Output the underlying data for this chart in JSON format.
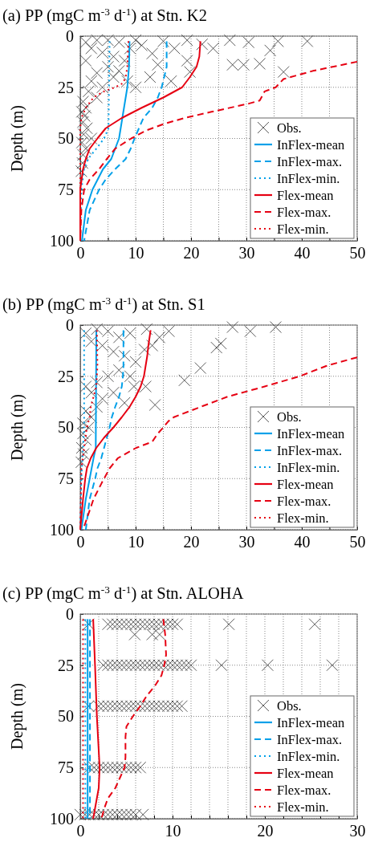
{
  "chart_data": [
    {
      "type": "line",
      "title": "(a) PP (mgC m$^{-3}$ d$^{-1}$) at Stn. K2",
      "ylabel": "Depth (m)",
      "xlim": [
        0,
        50
      ],
      "ylim": [
        100,
        0
      ],
      "xticks": [
        0,
        {
          "value": 5,
          "label": null
        },
        10,
        {
          "value": 15,
          "label": null
        },
        20,
        {
          "value": 25,
          "label": null
        },
        30,
        {
          "value": 35,
          "label": null
        },
        40,
        {
          "value": 45,
          "label": null
        },
        50
      ],
      "yticks": [
        0,
        25,
        50,
        75,
        100
      ],
      "grid": true,
      "legend": "bottom right",
      "series": [
        {
          "name": "Obs.",
          "type": "scatter",
          "marker": "cross",
          "color": "#333333",
          "x": [
            27.5,
            29.5,
            32.4,
            36.7,
            27,
            30.4,
            35.7,
            41,
            34.3,
            19.3,
            19.8,
            16.4,
            12.6,
            13,
            11.1,
            15,
            19.3,
            22,
            24,
            10,
            7,
            5,
            3,
            1,
            2,
            4,
            6,
            8,
            9,
            5,
            3,
            1,
            2,
            4,
            6,
            7,
            1.5,
            3,
            0.5,
            1,
            0.3,
            0.8,
            0.5,
            1.2,
            0.6,
            0.3,
            1,
            0.5,
            2,
            0.4,
            0.2,
            10,
            14,
            17,
            8.5
          ],
          "values": [
            14,
            14,
            13.5,
            17.5,
            2,
            3,
            2.5,
            2.5,
            7,
            12,
            17.5,
            22,
            20,
            8.5,
            4.5,
            2.5,
            2,
            4,
            6,
            2,
            3,
            2,
            2,
            3,
            6,
            8,
            10,
            12,
            6,
            15,
            18,
            12,
            22,
            25,
            20,
            17,
            27,
            30,
            32,
            35,
            37,
            39,
            42,
            45,
            48,
            52,
            55,
            58,
            50,
            62,
            66,
            25,
            14,
            6,
            22
          ]
        },
        {
          "name": "InFlex-mean",
          "color": "#00a0e9",
          "line_style": "solid",
          "x": [
            8.9,
            8.8,
            8.5,
            7.6,
            7.0,
            5.6,
            4.1,
            2.2,
            1.0,
            0.3
          ],
          "values": [
            2.5,
            15,
            25,
            40,
            50,
            60,
            65,
            75,
            85,
            100
          ]
        },
        {
          "name": "InFlex-max.",
          "color": "#00a0e9",
          "line_style": "dashed",
          "x": [
            15.6,
            15.6,
            14.7,
            14,
            13,
            11.4,
            10.6,
            9.8,
            9.1,
            8.2,
            6.3,
            4.6,
            3.4,
            1.7,
            0.7
          ],
          "values": [
            2.5,
            15,
            25,
            30,
            35,
            40,
            45,
            50,
            55,
            60,
            65,
            70,
            75,
            85,
            100
          ]
        },
        {
          "name": "InFlex-min.",
          "color": "#00a0e9",
          "line_style": "dotted",
          "x": [
            5.3,
            5.1,
            4.3,
            2.9,
            1.4,
            0.7,
            0.2,
            0
          ],
          "values": [
            2.5,
            45,
            50,
            55,
            60,
            65,
            75,
            100
          ]
        },
        {
          "name": "Flex-mean",
          "color": "#e60012",
          "line_style": "solid",
          "x": [
            21.7,
            21.5,
            21,
            19.8,
            18.4,
            15,
            11.1,
            7.5,
            4.6,
            3.1,
            1.7,
            1.0,
            0.5,
            0,
            0
          ],
          "values": [
            2.5,
            10,
            15,
            20,
            25,
            30,
            35,
            40,
            45,
            50,
            55,
            60,
            65,
            75,
            100
          ]
        },
        {
          "name": "Flex-max.",
          "color": "#e60012",
          "line_style": "dashed",
          "x": [
            50,
            42,
            36.7,
            35.3,
            33.3,
            32.4,
            30.4,
            23.7,
            18.8,
            15,
            12,
            9.2,
            6.3,
            4.8,
            3.4,
            1.7,
            0.7,
            0.2,
            0
          ],
          "values": [
            12.5,
            17,
            21,
            25,
            27,
            31.5,
            33,
            37,
            40,
            43,
            46,
            50,
            55,
            60,
            65,
            70,
            75,
            85,
            100
          ]
        },
        {
          "name": "Flex-min.",
          "color": "#e60012",
          "line_style": "dotted",
          "x": [
            8.7,
            8.5,
            8.2,
            7.7,
            6.3,
            4.3,
            2.4,
            1.0,
            0.2,
            0,
            0
          ],
          "values": [
            2.5,
            15,
            20,
            23,
            25,
            27,
            30,
            35,
            40,
            45,
            100
          ]
        }
      ]
    },
    {
      "type": "line",
      "title": "(b) PP (mgC m$^{-3}$ d$^{-1}$) at Stn. S1",
      "ylabel": "Depth (m)",
      "xlim": [
        0,
        50
      ],
      "ylim": [
        100,
        0
      ],
      "xticks": [
        0,
        {
          "value": 5,
          "label": null
        },
        10,
        {
          "value": 15,
          "label": null
        },
        20,
        {
          "value": 25,
          "label": null
        },
        30,
        {
          "value": 35,
          "label": null
        },
        40,
        {
          "value": 45,
          "label": null
        },
        50
      ],
      "yticks": [
        0,
        25,
        50,
        75,
        100
      ],
      "grid": true,
      "legend": "bottom right",
      "series": [
        {
          "name": "Obs.",
          "type": "scatter",
          "marker": "cross",
          "color": "#333333",
          "x": [
            27.5,
            30.7,
            35.3,
            24.6,
            25.4,
            21.7,
            18.8,
            13.5,
            14.3,
            11.6,
            11.8,
            9.7,
            16,
            12,
            9,
            7,
            5,
            3,
            1,
            2,
            4,
            6,
            8,
            10,
            7,
            5,
            3,
            1,
            2,
            4,
            3,
            1,
            2,
            0.5,
            1.5,
            0.5,
            1,
            0.3,
            0.6,
            0.2,
            6,
            8,
            13,
            9
          ],
          "values": [
            1,
            3,
            1,
            11,
            9,
            21,
            27,
            39,
            6,
            12,
            30,
            30,
            3,
            2,
            4,
            6,
            3,
            2,
            4,
            8,
            10,
            13,
            15,
            18,
            22,
            25,
            28,
            30,
            33,
            36,
            40,
            42,
            45,
            48,
            50,
            53,
            56,
            60,
            63,
            67,
            33,
            38,
            10,
            25
          ]
        },
        {
          "name": "InFlex-mean",
          "color": "#00a0e9",
          "line_style": "solid",
          "x": [
            2.9,
            2.8,
            2.4,
            1.7,
            1.0,
            0.2
          ],
          "values": [
            2.5,
            60,
            65,
            75,
            85,
            100
          ]
        },
        {
          "name": "InFlex-max.",
          "color": "#00a0e9",
          "line_style": "dashed",
          "x": [
            7.8,
            7.8,
            7.7,
            7.5,
            7,
            6.3,
            5.7,
            5.3,
            4.8,
            4.3,
            3.8,
            3.1,
            2.7,
            1.7,
            1.0
          ],
          "values": [
            2.5,
            20,
            25,
            30,
            35,
            40,
            45,
            50,
            55,
            60,
            65,
            70,
            75,
            85,
            100
          ]
        },
        {
          "name": "InFlex-min.",
          "color": "#00a0e9",
          "line_style": "dotted",
          "x": [
            0.7,
            0.7,
            0.5,
            0.2,
            0
          ],
          "values": [
            2.5,
            50,
            60,
            75,
            100
          ]
        },
        {
          "name": "Flex-mean",
          "color": "#e60012",
          "line_style": "solid",
          "x": [
            12.7,
            12.3,
            12.1,
            11.8,
            11.5,
            10.9,
            10,
            8.9,
            7.5,
            6,
            4.3,
            2.9,
            1.9,
            1.2,
            0.9,
            0.5,
            0
          ],
          "values": [
            2.5,
            10,
            15,
            20,
            25,
            30,
            35,
            40,
            45,
            50,
            55,
            60,
            65,
            70,
            75,
            85,
            100
          ]
        },
        {
          "name": "Flex-max.",
          "color": "#e60012",
          "line_style": "dashed",
          "x": [
            50,
            48.3,
            44.4,
            39.6,
            33.3,
            26.6,
            21.7,
            16.9,
            15.9,
            15,
            14,
            13,
            10.1,
            6.8,
            5.3,
            4.3,
            3.9,
            2.4,
            0.5
          ],
          "values": [
            15.8,
            17,
            20,
            25,
            30,
            35,
            40,
            45,
            47,
            50,
            53,
            57,
            60,
            65,
            70,
            75,
            77,
            85,
            100
          ]
        },
        {
          "name": "Flex-min.",
          "color": "#e60012",
          "line_style": "dotted",
          "x": [
            3,
            3.1,
            2.9,
            2.4,
            1.9,
            1.7,
            1.2,
            0.7,
            0.2,
            0
          ],
          "values": [
            2.5,
            20,
            30,
            35,
            40,
            45,
            50,
            60,
            70,
            100
          ]
        }
      ]
    },
    {
      "type": "line",
      "title": "(c) PP (mgC m$^{-3}$ d$^{-1}$) at Stn. ALOHA",
      "ylabel": "Depth (m)",
      "xlim": [
        0,
        30
      ],
      "ylim": [
        100,
        0
      ],
      "xticks": [
        0,
        {
          "value": 2,
          "label": null
        },
        {
          "value": 4,
          "label": null
        },
        {
          "value": 6,
          "label": null
        },
        {
          "value": 8,
          "label": null
        },
        10,
        {
          "value": 12,
          "label": null
        },
        {
          "value": 14,
          "label": null
        },
        {
          "value": 16,
          "label": null
        },
        {
          "value": 18,
          "label": null
        },
        20,
        {
          "value": 22,
          "label": null
        },
        {
          "value": 24,
          "label": null
        },
        {
          "value": 26,
          "label": null
        },
        {
          "value": 28,
          "label": null
        },
        30
      ],
      "yticks": [
        0,
        25,
        50,
        75,
        100
      ],
      "grid": true,
      "legend": "bottom right",
      "series": [
        {
          "name": "Obs.",
          "type": "scatter",
          "marker": "cross",
          "color": "#333333",
          "x": [
            3,
            3.5,
            4,
            4.5,
            5,
            5.5,
            6,
            6.5,
            7,
            7.5,
            8,
            8.5,
            9,
            9.5,
            10,
            10.5,
            0.9,
            16.1,
            25.4,
            5.9,
            7.8,
            8.6,
            2.5,
            3,
            3.5,
            4,
            4.5,
            5,
            5.5,
            6,
            6.5,
            7,
            7.5,
            8,
            8.5,
            9,
            9.5,
            10,
            10.5,
            11,
            11.5,
            12,
            15.3,
            20.3,
            27.3,
            0.9,
            2,
            2.5,
            3,
            3.5,
            4,
            4.5,
            5,
            5.5,
            6,
            6.5,
            7,
            7.5,
            8,
            8.5,
            9,
            9.5,
            10,
            10.5,
            11,
            1,
            1.5,
            2,
            2.5,
            3,
            3.5,
            4,
            4.5,
            5,
            5.5,
            6,
            6.5,
            0,
            0.5,
            1,
            1.5,
            2,
            2.5,
            3,
            3.5,
            4,
            4.5,
            5,
            5.5,
            6,
            6.8
          ],
          "values": [
            5,
            5,
            5,
            5,
            5,
            5,
            5,
            5,
            5,
            5,
            5,
            5,
            5,
            5,
            5,
            5,
            5,
            5,
            5,
            10,
            10,
            10,
            25,
            25,
            25,
            25,
            25,
            25,
            25,
            25,
            25,
            25,
            25,
            25,
            25,
            25,
            25,
            25,
            25,
            25,
            25,
            25,
            25,
            25,
            25,
            45,
            45,
            45,
            45,
            45,
            45,
            45,
            45,
            45,
            45,
            45,
            45,
            45,
            45,
            45,
            45,
            45,
            45,
            45,
            45,
            75,
            75,
            75,
            75,
            75,
            75,
            75,
            75,
            75,
            75,
            75,
            75,
            98,
            98,
            98,
            98,
            98,
            98,
            98,
            98,
            98,
            98,
            98,
            98,
            98,
            98
          ]
        },
        {
          "name": "InFlex-mean",
          "color": "#00a0e9",
          "line_style": "solid",
          "x": [
            0.8,
            0.8
          ],
          "values": [
            2.5,
            100
          ]
        },
        {
          "name": "InFlex-max.",
          "color": "#00a0e9",
          "line_style": "dashed",
          "x": [
            1.05,
            1.05
          ],
          "values": [
            2.5,
            100
          ]
        },
        {
          "name": "InFlex-min.",
          "color": "#00a0e9",
          "line_style": "dotted",
          "x": [
            0.55,
            0.55
          ],
          "values": [
            2.5,
            100
          ]
        },
        {
          "name": "Flex-mean",
          "color": "#e60012",
          "line_style": "solid",
          "x": [
            1.4,
            1.6,
            1.8,
            2.1,
            2.0,
            1.6,
            1.4
          ],
          "values": [
            2.5,
            25,
            50,
            75,
            85,
            95,
            100
          ]
        },
        {
          "name": "Flex-max.",
          "color": "#e60012",
          "line_style": "dashed",
          "x": [
            9.0,
            9.2,
            9.3,
            9.1,
            8.8,
            8.1,
            7.2,
            6.5,
            5.7,
            5.0,
            4.9,
            4.9,
            4.9,
            4.8,
            4.3,
            3.8,
            3.0,
            2.6,
            2.3
          ],
          "values": [
            2.5,
            10,
            20,
            25,
            30,
            35,
            40,
            45,
            50,
            55,
            60,
            65,
            70,
            75,
            80,
            85,
            90,
            95,
            100
          ]
        },
        {
          "name": "Flex-min.",
          "color": "#e60012",
          "line_style": "dotted",
          "x": [
            0.3,
            0.3
          ],
          "values": [
            2.5,
            100
          ]
        }
      ]
    }
  ]
}
